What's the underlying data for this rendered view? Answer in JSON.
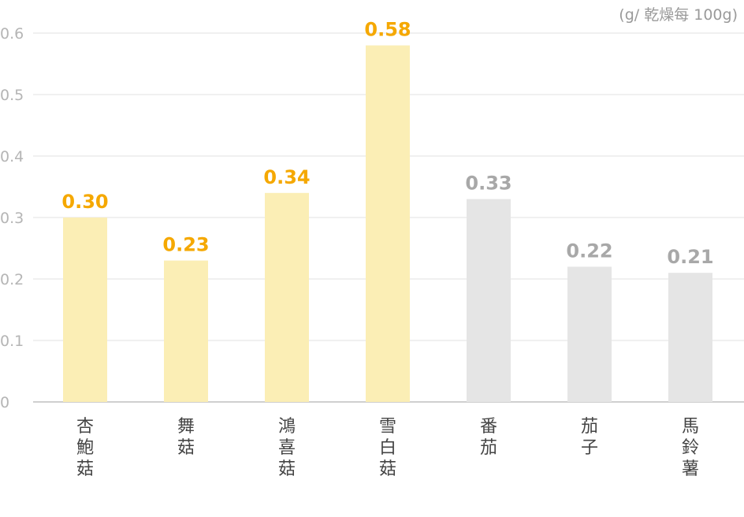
{
  "chart_data": {
    "type": "bar",
    "unit_label": "(g/ 乾燥每 100g)",
    "categories": [
      "杏鮑菇",
      "舞菇",
      "鴻喜菇",
      "雪白菇",
      "番茄",
      "茄子",
      "馬鈴薯"
    ],
    "values": [
      0.3,
      0.23,
      0.34,
      0.58,
      0.33,
      0.22,
      0.21
    ],
    "value_labels": [
      "0.30",
      "0.23",
      "0.34",
      "0.58",
      "0.33",
      "0.22",
      "0.21"
    ],
    "y_ticks": [
      "0",
      "0.1",
      "0.2",
      "0.3",
      "0.4",
      "0.5",
      "0.6"
    ],
    "ylim": [
      0,
      0.6
    ],
    "grid": true,
    "highlight_count": 4,
    "colors": {
      "highlight_bar": "#fbeeb5",
      "highlight_label": "#f5a800",
      "normal_bar": "#e5e5e5",
      "normal_label": "#a8a8a8",
      "grid": "#ececec",
      "axis": "#cfcfcf"
    }
  }
}
